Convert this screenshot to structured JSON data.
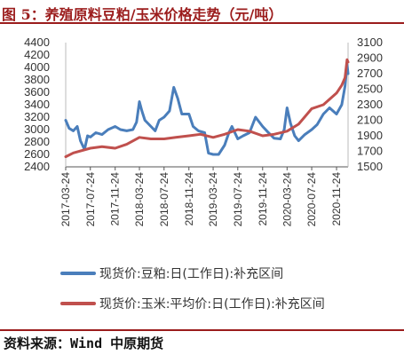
{
  "title": "图 5：养殖原料豆粕/玉米价格走势（元/吨）",
  "source": "资料来源：Wind 中原期货",
  "chart_data": {
    "type": "line",
    "left_axis": {
      "min": 2400,
      "max": 4400,
      "ticks": [
        2400,
        2600,
        2800,
        3000,
        3200,
        3400,
        3600,
        3800,
        4000,
        4200,
        4400
      ]
    },
    "right_axis": {
      "min": 1500,
      "max": 3100,
      "ticks": [
        1500,
        1700,
        1900,
        2100,
        2300,
        2500,
        2700,
        2900,
        3100
      ]
    },
    "x_ticks": [
      "2017-03-24",
      "2017-07-24",
      "2017-11-24",
      "2018-03-24",
      "2018-07-24",
      "2018-11-24",
      "2019-03-24",
      "2019-07-24",
      "2019-11-24",
      "2020-03-24",
      "2020-07-24",
      "2020-11-24"
    ],
    "grid": false,
    "legend_position": "bottom",
    "series": [
      {
        "name": "现货价:豆粕:日(工作日):补充区间",
        "axis": "left",
        "color": "#4a7ebb",
        "points": [
          [
            "2017-03-24",
            3150
          ],
          [
            "2017-04-10",
            3020
          ],
          [
            "2017-05-01",
            2980
          ],
          [
            "2017-05-20",
            3050
          ],
          [
            "2017-06-05",
            2820
          ],
          [
            "2017-06-25",
            2680
          ],
          [
            "2017-07-10",
            2900
          ],
          [
            "2017-07-24",
            2880
          ],
          [
            "2017-08-20",
            2950
          ],
          [
            "2017-09-20",
            2920
          ],
          [
            "2017-10-20",
            3000
          ],
          [
            "2017-11-24",
            3050
          ],
          [
            "2017-12-20",
            3000
          ],
          [
            "2018-01-20",
            2980
          ],
          [
            "2018-02-20",
            3000
          ],
          [
            "2018-03-10",
            3120
          ],
          [
            "2018-03-24",
            3450
          ],
          [
            "2018-04-05",
            3300
          ],
          [
            "2018-04-20",
            3150
          ],
          [
            "2018-05-20",
            3050
          ],
          [
            "2018-06-10",
            2980
          ],
          [
            "2018-06-30",
            3150
          ],
          [
            "2018-07-24",
            3200
          ],
          [
            "2018-08-20",
            3300
          ],
          [
            "2018-09-10",
            3680
          ],
          [
            "2018-09-30",
            3500
          ],
          [
            "2018-10-20",
            3250
          ],
          [
            "2018-11-24",
            3250
          ],
          [
            "2018-12-15",
            3050
          ],
          [
            "2019-01-10",
            2980
          ],
          [
            "2019-02-10",
            2950
          ],
          [
            "2019-03-01",
            2620
          ],
          [
            "2019-03-24",
            2600
          ],
          [
            "2019-04-20",
            2600
          ],
          [
            "2019-05-20",
            2750
          ],
          [
            "2019-06-10",
            2950
          ],
          [
            "2019-06-25",
            3050
          ],
          [
            "2019-07-24",
            2850
          ],
          [
            "2019-08-20",
            2900
          ],
          [
            "2019-09-20",
            2950
          ],
          [
            "2019-10-20",
            3200
          ],
          [
            "2019-11-24",
            3050
          ],
          [
            "2019-12-20",
            2960
          ],
          [
            "2020-01-20",
            2860
          ],
          [
            "2020-02-20",
            2850
          ],
          [
            "2020-03-10",
            3000
          ],
          [
            "2020-03-24",
            3350
          ],
          [
            "2020-04-10",
            3100
          ],
          [
            "2020-05-01",
            2900
          ],
          [
            "2020-05-20",
            2820
          ],
          [
            "2020-06-20",
            2920
          ],
          [
            "2020-07-24",
            3000
          ],
          [
            "2020-08-20",
            3080
          ],
          [
            "2020-09-20",
            3250
          ],
          [
            "2020-10-20",
            3350
          ],
          [
            "2020-11-24",
            3250
          ],
          [
            "2020-12-20",
            3400
          ],
          [
            "2021-01-05",
            3700
          ],
          [
            "2021-01-15",
            4050
          ],
          [
            "2021-01-20",
            3900
          ]
        ]
      },
      {
        "name": "现货价:玉米:平均价:日(工作日):补充区间",
        "axis": "right",
        "color": "#c0504d",
        "points": [
          [
            "2017-03-24",
            1630
          ],
          [
            "2017-05-01",
            1680
          ],
          [
            "2017-07-24",
            1740
          ],
          [
            "2017-09-20",
            1760
          ],
          [
            "2017-11-24",
            1740
          ],
          [
            "2018-01-20",
            1790
          ],
          [
            "2018-03-24",
            1880
          ],
          [
            "2018-05-20",
            1860
          ],
          [
            "2018-07-24",
            1860
          ],
          [
            "2018-09-20",
            1880
          ],
          [
            "2018-11-24",
            1900
          ],
          [
            "2019-01-20",
            1920
          ],
          [
            "2019-03-24",
            1880
          ],
          [
            "2019-05-20",
            1920
          ],
          [
            "2019-07-24",
            1980
          ],
          [
            "2019-09-20",
            1960
          ],
          [
            "2019-11-24",
            1900
          ],
          [
            "2020-01-20",
            1920
          ],
          [
            "2020-03-24",
            1960
          ],
          [
            "2020-05-20",
            2050
          ],
          [
            "2020-07-24",
            2250
          ],
          [
            "2020-09-20",
            2300
          ],
          [
            "2020-11-24",
            2450
          ],
          [
            "2020-12-20",
            2550
          ],
          [
            "2021-01-05",
            2650
          ],
          [
            "2021-01-15",
            2880
          ],
          [
            "2021-01-20",
            2850
          ]
        ]
      }
    ]
  }
}
